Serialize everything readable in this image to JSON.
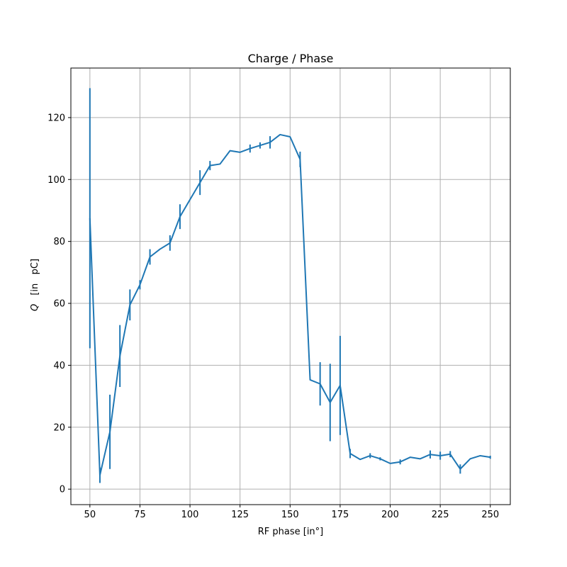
{
  "chart_data": {
    "type": "line",
    "title": "Charge / Phase",
    "xlabel": "RF phase [in°]",
    "ylabel_symbol": "Q",
    "ylabel_unit": "[in   pC]",
    "xlim": [
      40.5,
      260
    ],
    "ylim": [
      -5,
      136
    ],
    "xticks": [
      50,
      75,
      100,
      125,
      150,
      175,
      200,
      225,
      250
    ],
    "yticks": [
      0,
      20,
      40,
      60,
      80,
      100,
      120
    ],
    "grid": true,
    "color": "#1f77b4",
    "series": [
      {
        "x": [
          50,
          55,
          60,
          65,
          70,
          75,
          80,
          85,
          90,
          95,
          100,
          105,
          110,
          115,
          120,
          125,
          130,
          135,
          140,
          145,
          150,
          155,
          160,
          165,
          170,
          175,
          180,
          185,
          190,
          195,
          200,
          205,
          210,
          215,
          220,
          225,
          230,
          235,
          240,
          245,
          250
        ],
        "y": [
          87.5,
          4.5,
          18.5,
          43,
          59.5,
          66,
          75,
          77.5,
          79.5,
          88,
          93.5,
          99,
          104.5,
          105,
          109.3,
          108.8,
          110,
          111,
          112,
          114.5,
          113.8,
          106.5,
          35.3,
          34,
          28,
          33.5,
          11.5,
          9.6,
          10.8,
          9.8,
          8.3,
          8.8,
          10.3,
          9.8,
          11.2,
          10.8,
          11.3,
          6.5,
          9.8,
          10.8,
          10.3
        ],
        "yerr": [
          42,
          2.5,
          12,
          10,
          5,
          1.5,
          2.5,
          0,
          2.5,
          4,
          0,
          4,
          1.5,
          0,
          0,
          0,
          1.3,
          1,
          2,
          0,
          0,
          2.5,
          0,
          7,
          12.5,
          16,
          1.5,
          0,
          0.8,
          0.5,
          0,
          0.8,
          0,
          0,
          1.3,
          1.3,
          1,
          1.5,
          0,
          0,
          0.5
        ]
      }
    ]
  }
}
